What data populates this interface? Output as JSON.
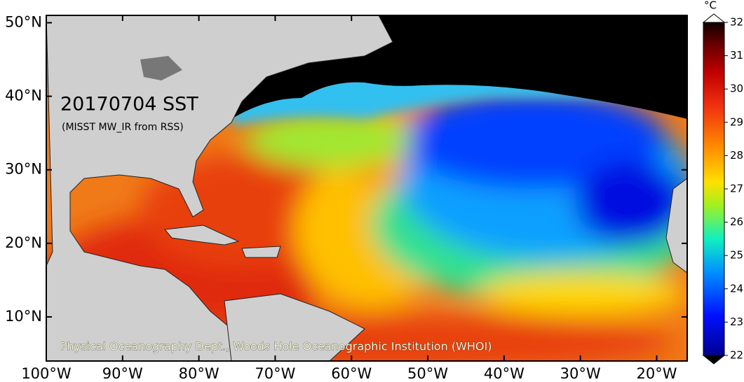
{
  "map": {
    "title": "20170704 SST",
    "subtitle": "(MISST MW_IR from RSS)",
    "credit": "Physical Oceanography Dept., Woods Hole Oceanographic Institution (WHOI)",
    "xlim": [
      -100,
      -16
    ],
    "ylim": [
      4,
      51
    ],
    "xticks": [
      {
        "value": -100,
        "label": "100°W"
      },
      {
        "value": -90,
        "label": "90°W"
      },
      {
        "value": -80,
        "label": "80°W"
      },
      {
        "value": -70,
        "label": "70°W"
      },
      {
        "value": -60,
        "label": "60°W"
      },
      {
        "value": -50,
        "label": "50°W"
      },
      {
        "value": -40,
        "label": "40°W"
      },
      {
        "value": -30,
        "label": "30°W"
      },
      {
        "value": -20,
        "label": "20°W"
      }
    ],
    "yticks": [
      {
        "value": 50,
        "label": "50°N"
      },
      {
        "value": 40,
        "label": "40°N"
      },
      {
        "value": 30,
        "label": "30°N"
      },
      {
        "value": 20,
        "label": "20°N"
      },
      {
        "value": 10,
        "label": "10°N"
      }
    ],
    "colorbar": {
      "unit": "°C",
      "lim": [
        22,
        32
      ],
      "ticks": [
        22,
        23,
        24,
        25,
        26,
        27,
        28,
        29,
        30,
        31,
        32
      ]
    }
  }
}
